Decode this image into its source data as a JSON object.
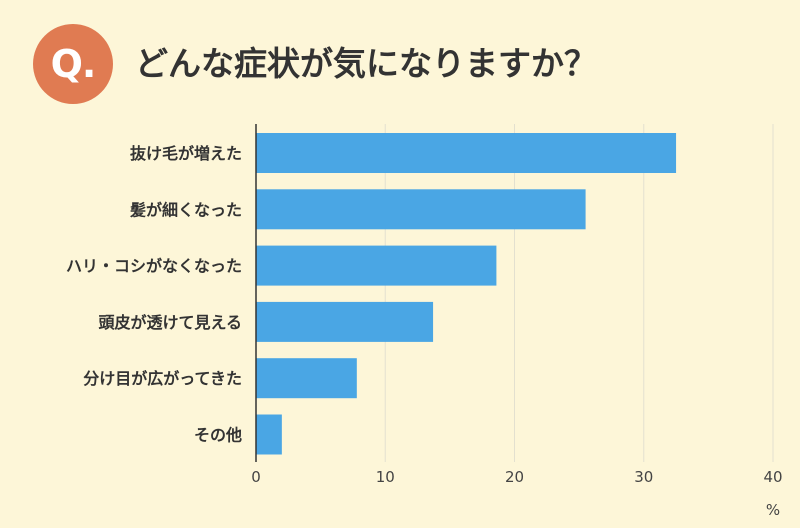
{
  "badge": "Q.",
  "colors": {
    "background": "#fdf6d8",
    "badge": "#e07b52",
    "bar": "#4aa6e4",
    "grid": "#e3e0cf",
    "axis": "#333333"
  },
  "chart_data": {
    "type": "bar",
    "orientation": "horizontal",
    "title": "どんな症状が気になりますか？",
    "categories": [
      "抜け毛が増えた",
      "髪が細くなった",
      "ハリ・コシがなくなった",
      "頭皮が透けて見える",
      "分け目が広がってきた",
      "その他"
    ],
    "values": [
      32.5,
      25.5,
      18.6,
      13.7,
      7.8,
      2.0
    ],
    "xlim": [
      0,
      40
    ],
    "xticks": [
      0,
      10,
      20,
      30,
      40
    ],
    "xlabel": "%",
    "grid": true,
    "legend": "none"
  }
}
